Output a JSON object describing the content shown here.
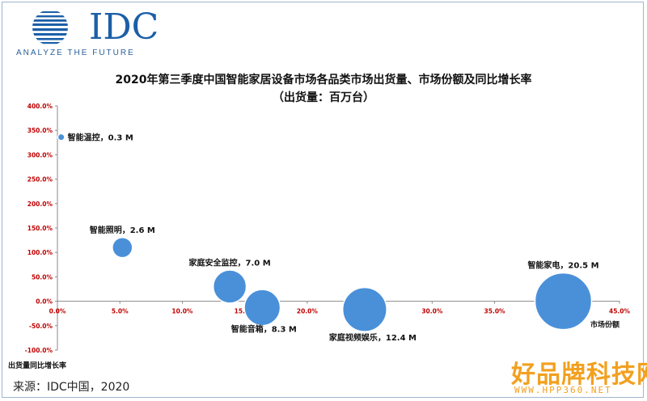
{
  "logo": {
    "brand": "IDC",
    "tagline": "ANALYZE THE FUTURE"
  },
  "source": "来源：IDC中国，2020",
  "watermark": {
    "main": "好品牌科技网",
    "sub": "WWW.HPP360.NET"
  },
  "colors": {
    "bubble": "#4a90d9",
    "bubble_stroke": "#ffffff",
    "axis": "#8a8a8a",
    "tick_text": "#c00000",
    "text": "#111111"
  },
  "chart_data": {
    "type": "scatter",
    "title": "2020年第三季度中国智能家居设备市场各品类市场出货量、市场份额及同比增长率",
    "subtitle": "（出货量：百万台）",
    "xlabel": "市场份额",
    "ylabel": "出货量同比增长率",
    "xlim": [
      0,
      45
    ],
    "ylim": [
      -100,
      400
    ],
    "xticks": [
      "0.0%",
      "5.0%",
      "10.0%",
      "15.0%",
      "20.0%",
      "25.0%",
      "30.0%",
      "35.0%",
      "40.0%",
      "45.0%"
    ],
    "yticks": [
      "400.0%",
      "350.0%",
      "300.0%",
      "250.0%",
      "200.0%",
      "150.0%",
      "100.0%",
      "50.0%",
      "0.0%",
      "-50.0%",
      "-100.0%"
    ],
    "grid": false,
    "points": [
      {
        "label": "智能温控，0.3 M",
        "x": 0.3,
        "y": 336,
        "size": 0.3
      },
      {
        "label": "智能照明，2.6 M",
        "x": 5.2,
        "y": 110,
        "size": 2.6
      },
      {
        "label": "家庭安全监控，7.0 M",
        "x": 13.8,
        "y": 30,
        "size": 7.0
      },
      {
        "label": "智能音箱，8.3 M",
        "x": 16.4,
        "y": -13,
        "size": 8.3
      },
      {
        "label": "家庭视频娱乐，12.4 M",
        "x": 24.6,
        "y": -17,
        "size": 12.4
      },
      {
        "label": "智能家电，20.5 M",
        "x": 40.5,
        "y": 0,
        "size": 20.5
      }
    ]
  }
}
